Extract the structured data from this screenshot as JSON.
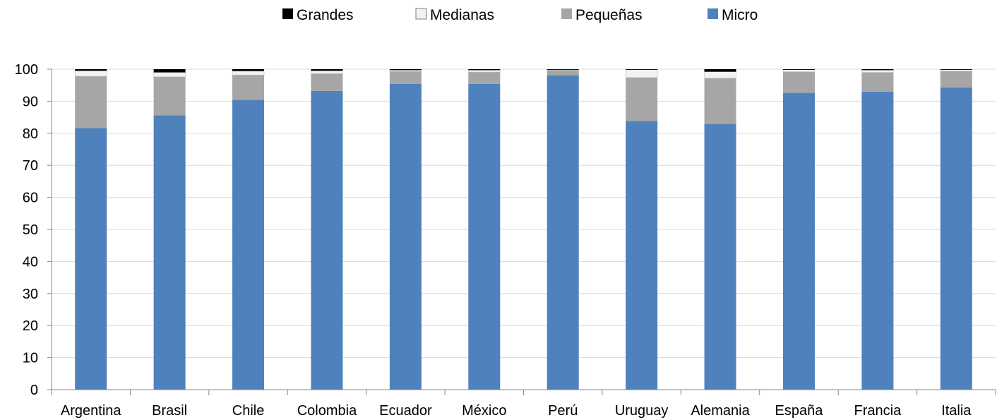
{
  "chart_data": {
    "type": "bar",
    "stacked": true,
    "title": "",
    "xlabel": "",
    "ylabel": "",
    "ylim": [
      0,
      100
    ],
    "yticks": [
      0,
      10,
      20,
      30,
      40,
      50,
      60,
      70,
      80,
      90,
      100
    ],
    "grid": true,
    "legend_position": "top",
    "categories": [
      "Argentina",
      "Brasil",
      "Chile",
      "Colombia",
      "Ecuador",
      "México",
      "Perú",
      "Uruguay",
      "Alemania",
      "España",
      "Francia",
      "Italia"
    ],
    "series": [
      {
        "name": "Micro",
        "color": "#4f81bd",
        "values": [
          81.6,
          85.6,
          90.4,
          93.2,
          95.4,
          95.4,
          98.1,
          83.8,
          82.9,
          92.6,
          93.0,
          94.3
        ]
      },
      {
        "name": "Pequeñas",
        "color": "#a6a6a6",
        "values": [
          16.2,
          12.0,
          7.8,
          5.4,
          3.9,
          3.7,
          1.6,
          13.6,
          14.3,
          6.6,
          6.0,
          5.1
        ]
      },
      {
        "name": "Medianas",
        "color": "#f2f2f2",
        "values": [
          1.7,
          1.4,
          1.2,
          0.9,
          0.4,
          0.6,
          0.1,
          2.4,
          2.0,
          0.6,
          0.7,
          0.4
        ]
      },
      {
        "name": "Grandes",
        "color": "#000000",
        "values": [
          0.5,
          1.0,
          0.6,
          0.5,
          0.3,
          0.3,
          0.2,
          0.2,
          0.8,
          0.2,
          0.3,
          0.2
        ]
      }
    ],
    "legend_order": [
      "Grandes",
      "Medianas",
      "Pequeñas",
      "Micro"
    ]
  }
}
